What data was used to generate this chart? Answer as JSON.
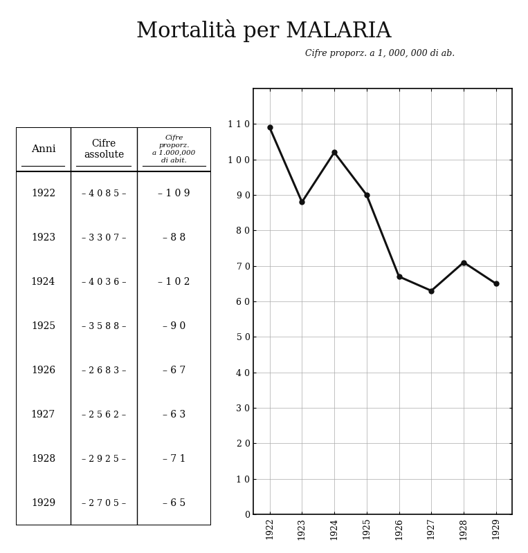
{
  "title": "Mortalità per MALARIA",
  "subtitle": "Cifre proporz. a 1, 000, 000 di ab.",
  "years": [
    1922,
    1923,
    1924,
    1925,
    1926,
    1927,
    1928,
    1929
  ],
  "cifre_assolute": [
    "4 0 8 5",
    "3 3 0 7",
    "4 0 3 6",
    "3 5 8 8",
    "2 6 8 3",
    "2 5 6 2",
    "2 9 2 5",
    "2 7 0 5"
  ],
  "cifre_proporzionali": [
    109,
    88,
    102,
    90,
    67,
    63,
    71,
    65
  ],
  "cifre_prop_str": [
    "1 0 9",
    "8 8",
    "1 0 2",
    "9 0",
    "6 7",
    "6 3",
    "7 1",
    "6 5"
  ],
  "ylim": [
    0,
    120
  ],
  "yticks": [
    0,
    10,
    20,
    30,
    40,
    50,
    60,
    70,
    80,
    90,
    100,
    110
  ],
  "ytick_labels": [
    "0",
    "1 0",
    "2 0",
    "3 0",
    "4 0",
    "5 0",
    "6 0",
    "7 0",
    "8 0",
    "9 0",
    "1 0 0",
    "1 1 0"
  ],
  "bg_color": "#ffffff",
  "line_color": "#111111",
  "grid_color": "#aaaaaa"
}
